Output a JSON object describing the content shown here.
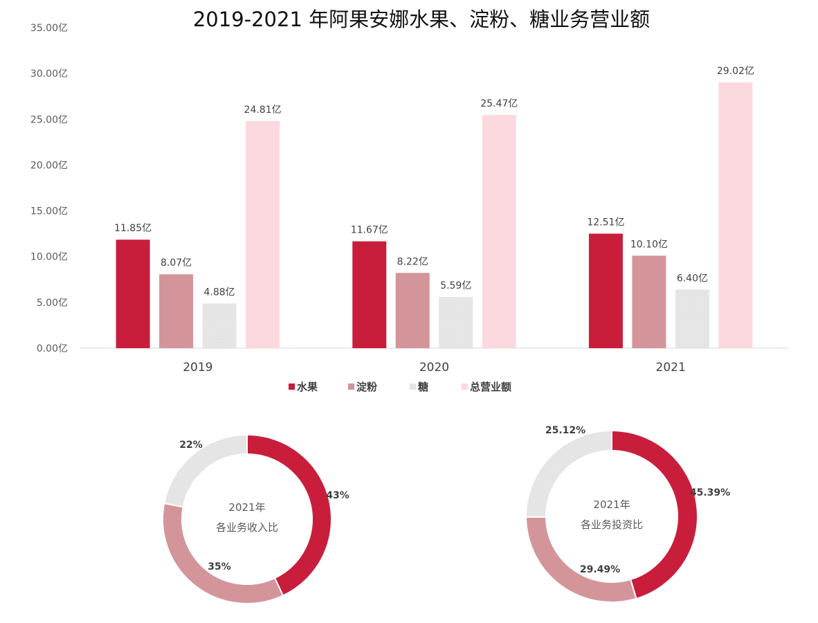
{
  "chart_data": [
    {
      "type": "bar",
      "title": "2019-2021 年阿果安娜水果、淀粉、糖业务营业额",
      "categories": [
        "2019",
        "2020",
        "2021"
      ],
      "series": [
        {
          "name": "水果",
          "color": "#C81E3C",
          "values": [
            11.85,
            11.67,
            12.51
          ],
          "labels": [
            "11.85亿",
            "11.67亿",
            "12.51亿"
          ]
        },
        {
          "name": "淀粉",
          "color": "#D4959A",
          "values": [
            8.07,
            8.22,
            10.1
          ],
          "labels": [
            "8.07亿",
            "8.22亿",
            "10.10亿"
          ]
        },
        {
          "name": "糖",
          "color": "#E8E8E8",
          "values": [
            4.88,
            5.59,
            6.4
          ],
          "labels": [
            "4.88亿",
            "5.59亿",
            "6.40亿"
          ]
        },
        {
          "name": "总营业额",
          "color": "#FCD9DF",
          "values": [
            24.81,
            25.47,
            29.02
          ],
          "labels": [
            "24.81亿",
            "25.47亿",
            "29.02亿"
          ]
        }
      ],
      "ylim": [
        0,
        35
      ],
      "yticks": [
        0,
        5,
        10,
        15,
        20,
        25,
        30,
        35
      ],
      "ytick_labels": [
        "0.00亿",
        "5.00亿",
        "10.00亿",
        "15.00亿",
        "20.00亿",
        "25.00亿",
        "30.00亿",
        "35.00亿"
      ],
      "grid": false,
      "legend_position": "bottom"
    },
    {
      "type": "pie",
      "center_lines": [
        "2021年",
        "各业务收入比"
      ],
      "slices": [
        {
          "name": "水果",
          "value": 43,
          "label": "43%",
          "color": "#C81E3C"
        },
        {
          "name": "淀粉",
          "value": 35,
          "label": "35%",
          "color": "#D4959A"
        },
        {
          "name": "糖",
          "value": 22,
          "label": "22%",
          "color": "#E8E8E8"
        }
      ]
    },
    {
      "type": "pie",
      "center_lines": [
        "2021年",
        "各业务投资比"
      ],
      "slices": [
        {
          "name": "水果",
          "value": 45.39,
          "label": "45.39%",
          "color": "#C81E3C"
        },
        {
          "name": "淀粉",
          "value": 29.49,
          "label": "29.49%",
          "color": "#D4959A"
        },
        {
          "name": "糖",
          "value": 25.12,
          "label": "25.12%",
          "color": "#E8E8E8"
        }
      ]
    }
  ]
}
